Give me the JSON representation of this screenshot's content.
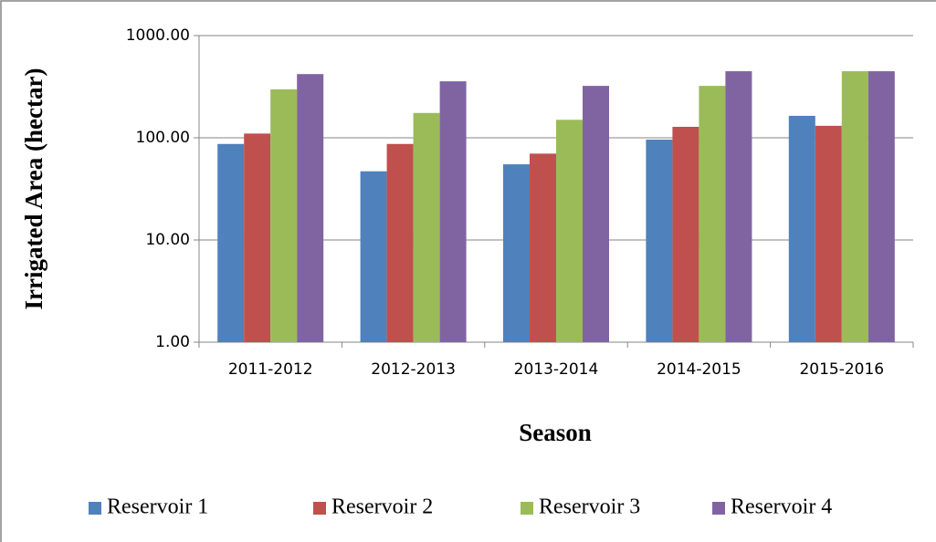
{
  "chart_data": {
    "type": "bar",
    "y_label": "Irrigated Area (hectar)",
    "x_label": "Season",
    "categories": [
      "2011-2012",
      "2012-2013",
      "2013-2014",
      "2014-2015",
      "2015-2016"
    ],
    "series": [
      {
        "name": "Reservoir 1",
        "color": "#4f81bd",
        "values": [
          87,
          47,
          55,
          96,
          164
        ]
      },
      {
        "name": "Reservoir 2",
        "color": "#c0504d",
        "values": [
          110,
          87,
          70,
          128,
          131
        ]
      },
      {
        "name": "Reservoir 3",
        "color": "#9bbb59",
        "values": [
          298,
          175,
          150,
          322,
          448
        ]
      },
      {
        "name": "Reservoir 4",
        "color": "#8064a2",
        "values": [
          420,
          357,
          322,
          448,
          448
        ]
      }
    ],
    "log_scale": true,
    "grid": true,
    "legend": "bottom",
    "ylim": [
      1,
      1000
    ],
    "yticks": [
      {
        "value": 1,
        "label": "1.00"
      },
      {
        "value": 10,
        "label": "10.00"
      },
      {
        "value": 100,
        "label": "100.00"
      },
      {
        "value": 1000,
        "label": "1000.00"
      }
    ]
  }
}
